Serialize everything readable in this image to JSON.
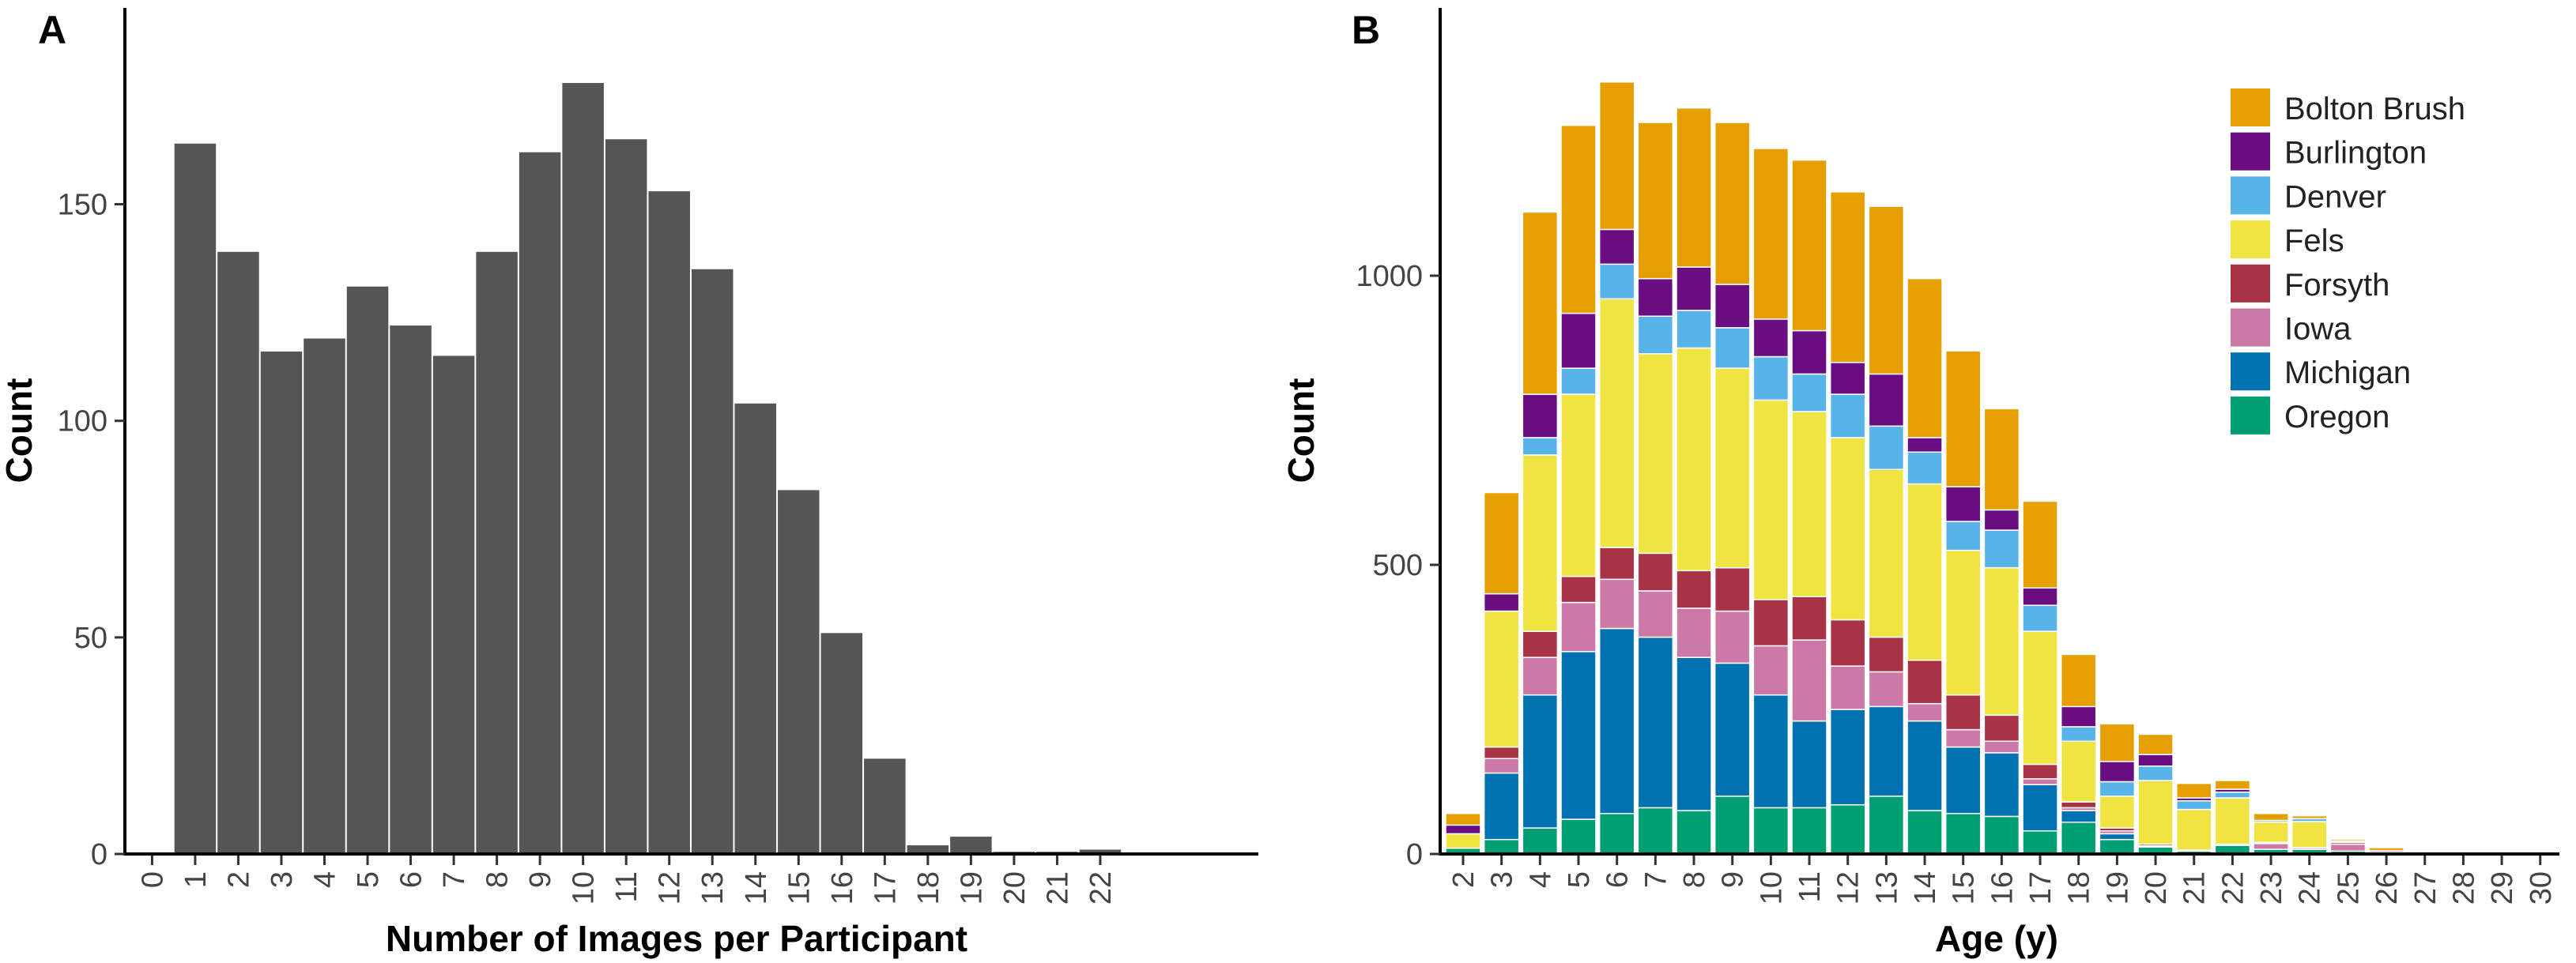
{
  "chart_data": [
    {
      "type": "bar",
      "panel_label": "A",
      "xlabel": "Number of Images per Participant",
      "ylabel": "Count",
      "x": [
        0,
        1,
        2,
        3,
        4,
        5,
        6,
        7,
        8,
        9,
        10,
        11,
        12,
        13,
        14,
        15,
        16,
        17,
        18,
        19,
        20,
        21,
        22
      ],
      "values": [
        0,
        164,
        139,
        116,
        119,
        131,
        122,
        115,
        139,
        162,
        178,
        165,
        153,
        135,
        104,
        84,
        51,
        22,
        2,
        4,
        0.5,
        0.5,
        1
      ],
      "yticks": [
        0,
        50,
        100,
        150
      ],
      "ylim": [
        0,
        193
      ],
      "color": "#555555",
      "grid": false
    },
    {
      "type": "bar",
      "stacked": true,
      "panel_label": "B",
      "xlabel": "Age (y)",
      "ylabel": "Count",
      "x": [
        2,
        3,
        4,
        5,
        6,
        7,
        8,
        9,
        10,
        11,
        12,
        13,
        14,
        15,
        16,
        17,
        18,
        19,
        20,
        21,
        22,
        23,
        24,
        25,
        26,
        27,
        28,
        29,
        30
      ],
      "yticks": [
        0,
        500,
        1000
      ],
      "ylim": [
        0,
        1465
      ],
      "legend_position": "top-right",
      "grid": false,
      "series": [
        {
          "name": "Oregon",
          "color": "#009E73",
          "values": [
            10,
            25,
            45,
            60,
            70,
            80,
            75,
            100,
            80,
            80,
            85,
            100,
            75,
            70,
            65,
            40,
            55,
            25,
            12,
            5,
            15,
            8,
            8,
            5,
            3,
            2,
            1,
            1,
            1
          ]
        },
        {
          "name": "Michigan",
          "color": "#0072B2",
          "values": [
            0,
            115,
            230,
            290,
            320,
            295,
            265,
            230,
            195,
            150,
            165,
            155,
            155,
            115,
            110,
            80,
            20,
            10,
            0,
            0,
            0,
            0,
            0,
            0,
            0,
            0,
            0,
            0,
            0
          ]
        },
        {
          "name": "Iowa",
          "color": "#CC79A7",
          "values": [
            0,
            25,
            65,
            85,
            85,
            80,
            85,
            90,
            85,
            140,
            75,
            60,
            30,
            30,
            20,
            10,
            5,
            5,
            2,
            2,
            2,
            10,
            3,
            12,
            3,
            1,
            0,
            0,
            0
          ]
        },
        {
          "name": "Forsyth",
          "color": "#A83246",
          "values": [
            0,
            20,
            45,
            45,
            55,
            65,
            65,
            75,
            80,
            75,
            80,
            60,
            75,
            60,
            45,
            25,
            10,
            5,
            3,
            0,
            0,
            2,
            0,
            3,
            0,
            0,
            0,
            0,
            0
          ]
        },
        {
          "name": "Fels",
          "color": "#F0E442",
          "values": [
            25,
            235,
            305,
            315,
            430,
            345,
            385,
            345,
            345,
            320,
            315,
            290,
            305,
            250,
            255,
            230,
            105,
            55,
            110,
            70,
            80,
            35,
            45,
            0,
            0,
            0,
            0,
            0,
            0
          ]
        },
        {
          "name": "Denver",
          "color": "#56B4E9",
          "values": [
            0,
            0,
            30,
            45,
            60,
            65,
            65,
            70,
            75,
            65,
            75,
            75,
            55,
            50,
            65,
            45,
            25,
            25,
            25,
            15,
            10,
            3,
            5,
            2,
            0,
            0,
            0,
            0,
            0
          ]
        },
        {
          "name": "Burlington",
          "color": "#6A0D83",
          "values": [
            15,
            30,
            75,
            95,
            60,
            65,
            75,
            75,
            65,
            75,
            55,
            90,
            25,
            60,
            35,
            30,
            35,
            35,
            20,
            5,
            5,
            0,
            0,
            0,
            0,
            0,
            0,
            0,
            0
          ]
        },
        {
          "name": "Bolton Brush",
          "color": "#E69F00",
          "values": [
            20,
            175,
            315,
            325,
            255,
            270,
            275,
            280,
            295,
            295,
            295,
            290,
            275,
            235,
            175,
            150,
            90,
            65,
            35,
            25,
            15,
            12,
            5,
            3,
            5,
            2,
            0,
            0,
            0
          ]
        }
      ],
      "legend": [
        "Bolton Brush",
        "Burlington",
        "Denver",
        "Fels",
        "Forsyth",
        "Iowa",
        "Michigan",
        "Oregon"
      ]
    }
  ]
}
